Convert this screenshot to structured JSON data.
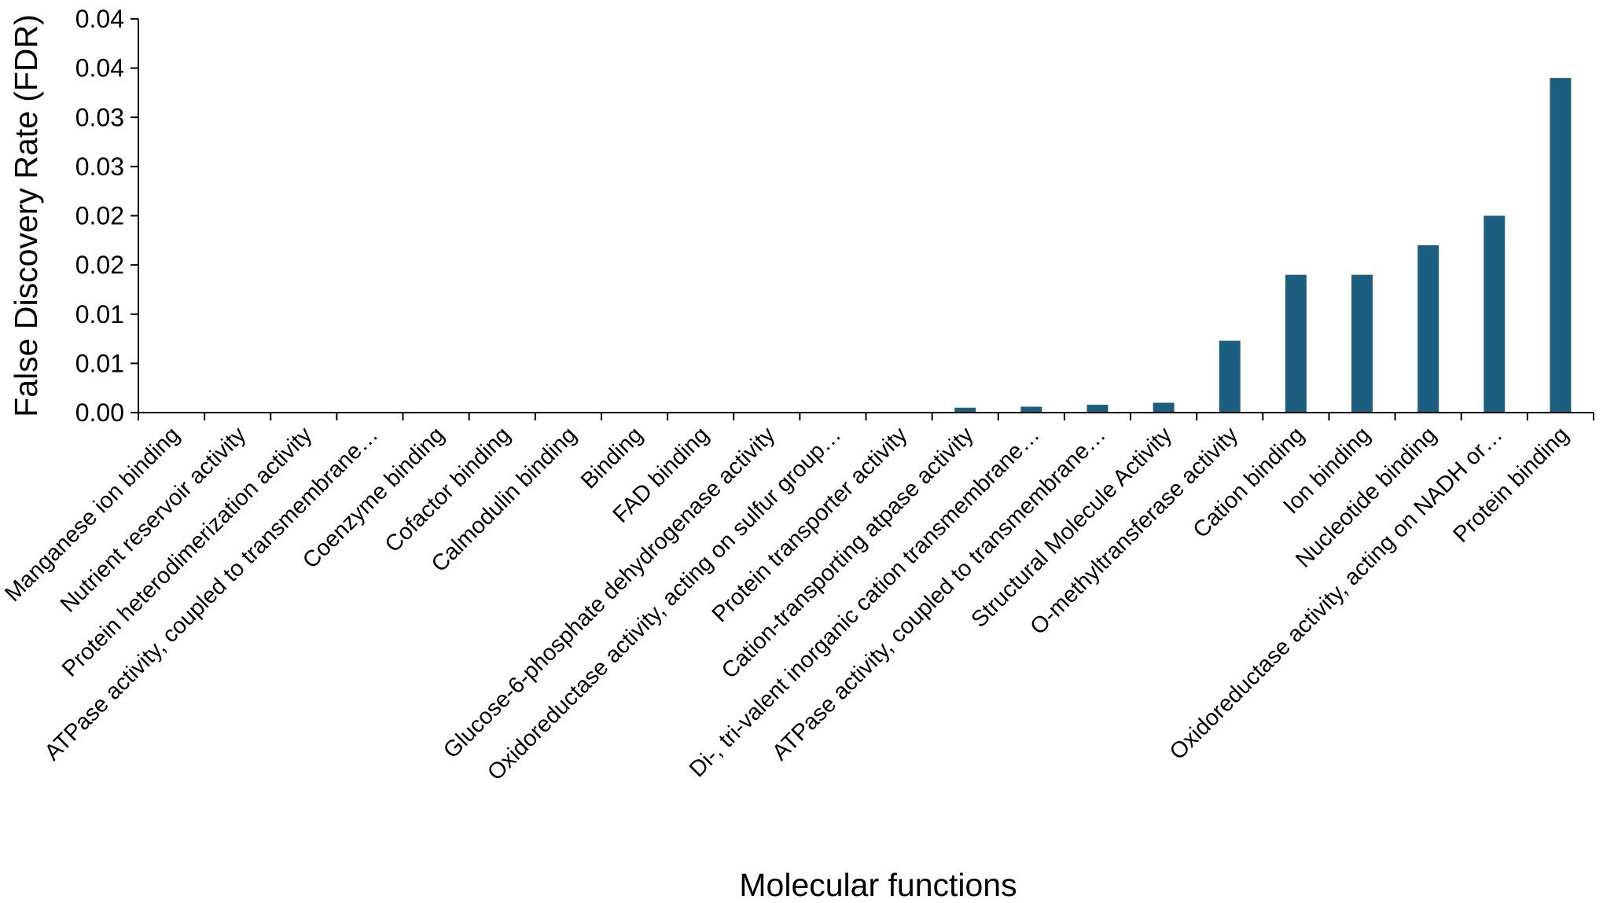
{
  "chart_data": {
    "type": "bar",
    "title": "",
    "xlabel": "Molecular functions",
    "ylabel": "False Discovery Rate (FDR)",
    "ylim": [
      0,
      0.04
    ],
    "yticks": [
      0,
      0.005,
      0.01,
      0.015,
      0.02,
      0.025,
      0.03,
      0.035,
      0.04
    ],
    "ytick_labels": [
      "0.00",
      "0.01",
      "0.01",
      "0.02",
      "0.02",
      "0.03",
      "0.03",
      "0.04",
      "0.04"
    ],
    "grid": false,
    "legend": "none",
    "bar_color": "#1b5e80",
    "categories": [
      "Manganese ion binding",
      "Nutrient reservoir activity",
      "Protein heterodimerization activity",
      "ATPase activity, coupled to transmembrane…",
      "Coenzyme binding",
      "Cofactor binding",
      "Calmodulin binding",
      "Binding",
      "FAD binding",
      "Glucose-6-phosphate dehydrogenase activity",
      "Oxidoreductase activity, acting on sulfur group…",
      "Protein transporter activity",
      "Cation-transporting atpase activity",
      "Di-, tri-valent inorganic cation transmembrane…",
      "ATPase activity, coupled to transmembrane…",
      "Structural Molecule Activity",
      "O-methyltransferase activity",
      "Cation binding",
      "Ion binding",
      "Nucleotide binding",
      "Oxidoreductase activity, acting on NADH or…",
      "Protein binding"
    ],
    "values": [
      0,
      0,
      0,
      0,
      0,
      0,
      0,
      0,
      0,
      0,
      0,
      0,
      0.0005,
      0.0006,
      0.0008,
      0.001,
      0.0073,
      0.014,
      0.014,
      0.017,
      0.02,
      0.034
    ]
  }
}
